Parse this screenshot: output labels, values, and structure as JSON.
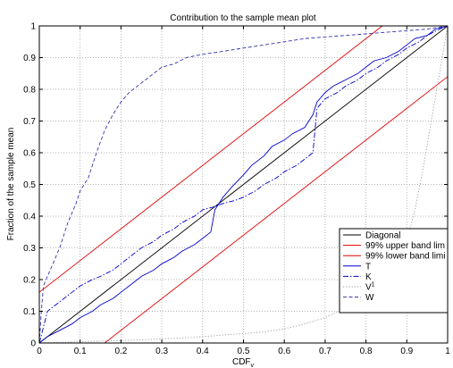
{
  "chart_data": {
    "type": "line",
    "title": "Contribution to the sample mean plot",
    "xlabel": "CDF",
    "xlabel_sub": "v",
    "ylabel": "Fraction of the sample mean",
    "xlim": [
      0,
      1
    ],
    "ylim": [
      0,
      1
    ],
    "xticks": [
      "0",
      "0.1",
      "0.2",
      "0.3",
      "0.4",
      "0.5",
      "0.6",
      "0.7",
      "0.8",
      "0.9",
      "1"
    ],
    "yticks": [
      "0",
      "0.1",
      "0.2",
      "0.3",
      "0.4",
      "0.5",
      "0.6",
      "0.7",
      "0.8",
      "0.9",
      "1"
    ],
    "grid": true,
    "legend_position": "right",
    "series": [
      {
        "name": "Diagonal",
        "color": "#000000",
        "style": "solid",
        "x": [
          0,
          1
        ],
        "y": [
          0,
          1
        ]
      },
      {
        "name": "99% upper band lim",
        "color": "#e00000",
        "style": "solid",
        "x": [
          0,
          0.84
        ],
        "y": [
          0.16,
          1
        ]
      },
      {
        "name": "99% lower band limi",
        "color": "#e00000",
        "style": "solid",
        "x": [
          0.16,
          1
        ],
        "y": [
          0,
          0.84
        ]
      },
      {
        "name": "T",
        "color": "#0000cc",
        "style": "solid",
        "x": [
          0,
          0.02,
          0.05,
          0.08,
          0.1,
          0.13,
          0.15,
          0.18,
          0.2,
          0.23,
          0.25,
          0.28,
          0.3,
          0.33,
          0.35,
          0.38,
          0.4,
          0.42,
          0.43,
          0.45,
          0.47,
          0.5,
          0.52,
          0.55,
          0.57,
          0.6,
          0.62,
          0.65,
          0.67,
          0.68,
          0.7,
          0.72,
          0.75,
          0.78,
          0.8,
          0.82,
          0.85,
          0.88,
          0.9,
          0.92,
          0.95,
          0.97,
          1
        ],
        "y": [
          0,
          0.02,
          0.04,
          0.06,
          0.08,
          0.1,
          0.12,
          0.14,
          0.16,
          0.19,
          0.21,
          0.23,
          0.25,
          0.27,
          0.29,
          0.31,
          0.33,
          0.35,
          0.42,
          0.46,
          0.49,
          0.53,
          0.56,
          0.59,
          0.62,
          0.64,
          0.66,
          0.68,
          0.72,
          0.76,
          0.79,
          0.81,
          0.83,
          0.85,
          0.87,
          0.89,
          0.9,
          0.92,
          0.94,
          0.96,
          0.97,
          0.99,
          1
        ]
      },
      {
        "name": "K",
        "color": "#0000cc",
        "style": "dashdot",
        "x": [
          0,
          0.01,
          0.02,
          0.05,
          0.08,
          0.1,
          0.13,
          0.15,
          0.18,
          0.2,
          0.23,
          0.25,
          0.28,
          0.3,
          0.33,
          0.35,
          0.38,
          0.4,
          0.43,
          0.45,
          0.48,
          0.5,
          0.53,
          0.55,
          0.58,
          0.6,
          0.63,
          0.65,
          0.67,
          0.68,
          0.7,
          0.73,
          0.75,
          0.78,
          0.8,
          0.83,
          0.85,
          0.88,
          0.9,
          0.93,
          0.95,
          0.98,
          1
        ],
        "y": [
          0,
          0.05,
          0.1,
          0.13,
          0.16,
          0.18,
          0.2,
          0.21,
          0.23,
          0.25,
          0.28,
          0.3,
          0.32,
          0.34,
          0.36,
          0.38,
          0.4,
          0.42,
          0.43,
          0.44,
          0.45,
          0.46,
          0.48,
          0.5,
          0.52,
          0.54,
          0.56,
          0.58,
          0.6,
          0.74,
          0.77,
          0.79,
          0.81,
          0.83,
          0.85,
          0.87,
          0.89,
          0.91,
          0.93,
          0.95,
          0.97,
          0.99,
          1
        ]
      },
      {
        "name": "V",
        "name_sup": "1",
        "color": "#999999",
        "style": "dotted",
        "x": [
          0,
          0.05,
          0.1,
          0.15,
          0.2,
          0.25,
          0.3,
          0.35,
          0.4,
          0.45,
          0.5,
          0.55,
          0.6,
          0.65,
          0.7,
          0.75,
          0.8,
          0.85,
          0.88,
          0.9,
          0.92,
          0.94,
          0.96,
          0.98,
          1
        ],
        "y": [
          0,
          0.002,
          0.004,
          0.006,
          0.008,
          0.01,
          0.013,
          0.016,
          0.02,
          0.025,
          0.03,
          0.035,
          0.045,
          0.06,
          0.08,
          0.11,
          0.15,
          0.2,
          0.25,
          0.32,
          0.42,
          0.55,
          0.7,
          0.85,
          1
        ]
      },
      {
        "name": "W",
        "color": "#3333aa",
        "style": "dashed",
        "x": [
          0,
          0.005,
          0.01,
          0.02,
          0.03,
          0.05,
          0.07,
          0.09,
          0.1,
          0.12,
          0.14,
          0.16,
          0.18,
          0.2,
          0.22,
          0.25,
          0.28,
          0.3,
          0.33,
          0.36,
          0.4,
          0.45,
          0.5,
          0.55,
          0.6,
          0.65,
          0.7,
          0.75,
          0.8,
          0.85,
          0.9,
          0.95,
          1
        ],
        "y": [
          0,
          0.1,
          0.18,
          0.21,
          0.24,
          0.3,
          0.38,
          0.44,
          0.48,
          0.52,
          0.6,
          0.67,
          0.72,
          0.76,
          0.79,
          0.82,
          0.85,
          0.87,
          0.88,
          0.9,
          0.91,
          0.92,
          0.93,
          0.94,
          0.95,
          0.96,
          0.965,
          0.97,
          0.975,
          0.98,
          0.985,
          0.99,
          1
        ]
      }
    ]
  }
}
